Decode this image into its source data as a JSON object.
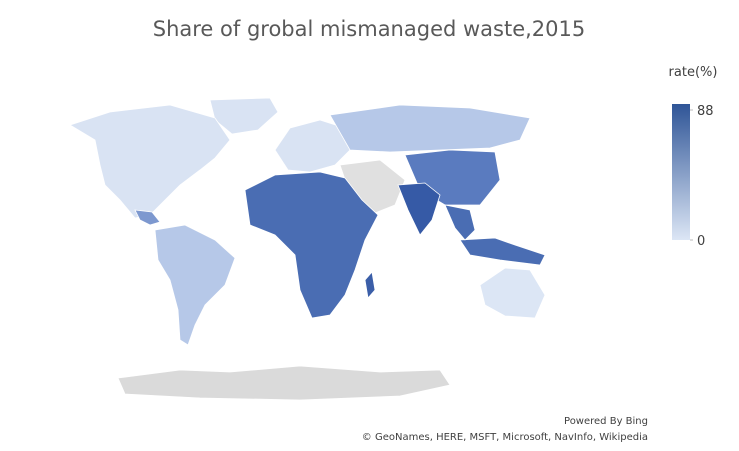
{
  "chart_data": {
    "type": "map",
    "title": "Share of grobal mismanaged waste,2015",
    "legend_title": "rate(%)",
    "color_scale": {
      "low_color": "#dce6f5",
      "high_color": "#2f5597"
    },
    "ticks": [
      0,
      88
    ],
    "credits": [
      "Powered By Bing",
      "© GeoNames, HERE, MSFT, Microsoft, NavInfo, Wikipedia"
    ]
  }
}
